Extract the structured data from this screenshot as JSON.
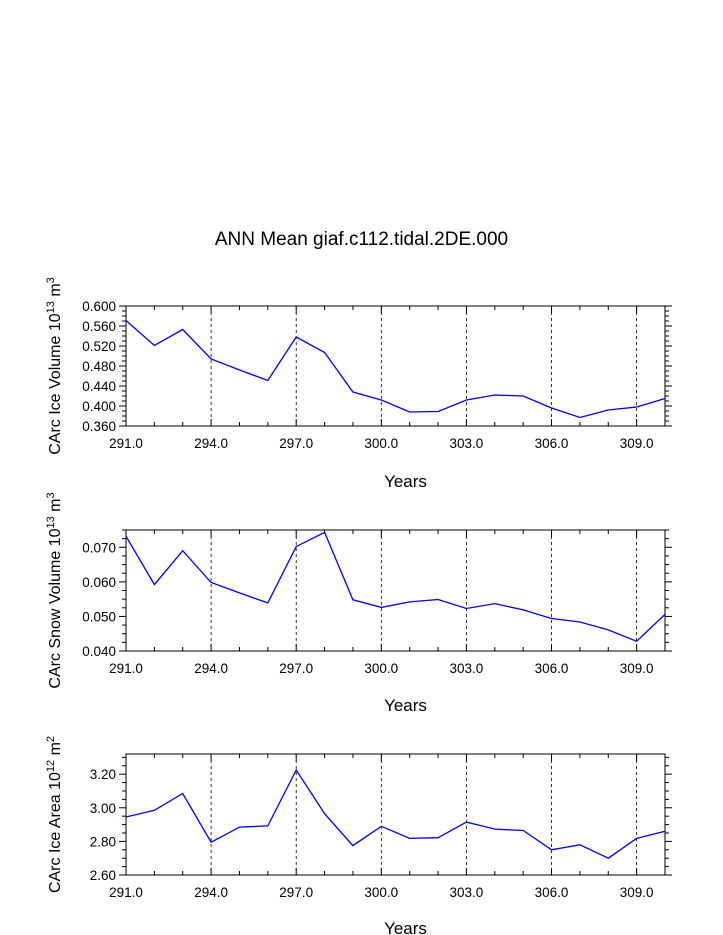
{
  "title": "ANN Mean giaf.c112.tidal.2DE.000",
  "chart_data": [
    {
      "type": "line",
      "ylabel": "CArc Ice Volume",
      "ylabel_unit": "10",
      "ylabel_exp": "13",
      "ylabel_m": "m",
      "ylabel_m_exp": "3",
      "xlabel": "Years",
      "x": [
        291,
        292,
        293,
        294,
        295,
        296,
        297,
        298,
        299,
        300,
        301,
        302,
        303,
        304,
        305,
        306,
        307,
        308,
        309,
        310
      ],
      "y": [
        0.571,
        0.521,
        0.553,
        0.494,
        0.472,
        0.451,
        0.538,
        0.507,
        0.428,
        0.412,
        0.388,
        0.389,
        0.412,
        0.422,
        0.42,
        0.396,
        0.377,
        0.392,
        0.398,
        0.415
      ],
      "xlim": [
        291,
        310
      ],
      "ylim": [
        0.36,
        0.6
      ],
      "yticks": [
        "0.360",
        "0.400",
        "0.440",
        "0.480",
        "0.520",
        "0.560",
        "0.600"
      ],
      "xticks": [
        "291.0",
        "294.0",
        "297.0",
        "300.0",
        "303.0",
        "306.0",
        "309.0"
      ],
      "line_color": "#0000ff"
    },
    {
      "type": "line",
      "ylabel": "CArc Snow Volume",
      "ylabel_unit": "10",
      "ylabel_exp": "13",
      "ylabel_m": "m",
      "ylabel_m_exp": "3",
      "xlabel": "Years",
      "x": [
        291,
        292,
        293,
        294,
        295,
        296,
        297,
        298,
        299,
        300,
        301,
        302,
        303,
        304,
        305,
        306,
        307,
        308,
        309,
        310
      ],
      "y": [
        0.0732,
        0.0592,
        0.069,
        0.0598,
        0.0568,
        0.0539,
        0.0702,
        0.0743,
        0.0548,
        0.0526,
        0.0542,
        0.0549,
        0.0523,
        0.0537,
        0.0519,
        0.0494,
        0.0484,
        0.0461,
        0.0428,
        0.0506
      ],
      "xlim": [
        291,
        310
      ],
      "ylim": [
        0.04,
        0.075
      ],
      "yticks": [
        "0.040",
        "0.050",
        "0.060",
        "0.070"
      ],
      "xticks": [
        "291.0",
        "294.0",
        "297.0",
        "300.0",
        "303.0",
        "306.0",
        "309.0"
      ],
      "line_color": "#0000ff"
    },
    {
      "type": "line",
      "ylabel": "CArc Ice Area",
      "ylabel_unit": "10",
      "ylabel_exp": "12",
      "ylabel_m": "m",
      "ylabel_m_exp": "2",
      "xlabel": "Years",
      "x": [
        291,
        292,
        293,
        294,
        295,
        296,
        297,
        298,
        299,
        300,
        301,
        302,
        303,
        304,
        305,
        306,
        307,
        308,
        309,
        310
      ],
      "y": [
        2.945,
        2.985,
        3.085,
        2.795,
        2.885,
        2.892,
        3.225,
        2.965,
        2.775,
        2.89,
        2.818,
        2.822,
        2.915,
        2.873,
        2.865,
        2.75,
        2.78,
        2.7,
        2.818,
        2.86
      ],
      "xlim": [
        291,
        310
      ],
      "ylim": [
        2.6,
        3.32
      ],
      "yticks": [
        "2.60",
        "2.80",
        "3.00",
        "3.20"
      ],
      "xticks": [
        "291.0",
        "294.0",
        "297.0",
        "300.0",
        "303.0",
        "306.0",
        "309.0"
      ],
      "line_color": "#0000ff"
    }
  ]
}
